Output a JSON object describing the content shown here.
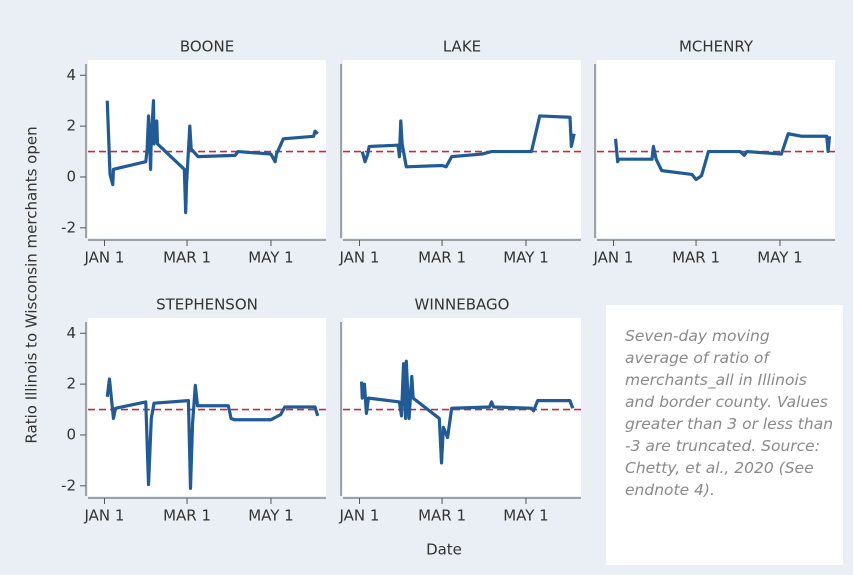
{
  "y_label": "Ratio Illinois to Wisconsin merchants open",
  "x_label": "Date",
  "note": "Seven-day moving average of ratio of merchants_all in Illinois and border county. Values greater than 3 or less than -3 are truncated. Source: Chetty, et al., 2020 (See endnote 4).",
  "chart_data": [
    {
      "type": "line",
      "title": "BOONE",
      "color": "#205b98",
      "ref_line": 1,
      "ref_color": "#c8283c",
      "xlim": [
        -12,
        161
      ],
      "ylim": [
        -2.4,
        4.6
      ],
      "xticks": [
        {
          "value": 0,
          "label": "JAN 1"
        },
        {
          "value": 60,
          "label": "MAR 1"
        },
        {
          "value": 121,
          "label": "MAY 1"
        }
      ],
      "yticks": [
        4,
        2,
        0,
        -2
      ],
      "x": [
        2,
        4,
        6,
        6.5,
        30,
        31,
        32,
        33.5,
        34,
        35.6,
        36,
        38,
        38.5,
        58,
        59,
        59.6,
        62,
        63,
        68,
        95,
        97,
        121,
        124,
        125,
        130,
        152,
        153,
        155
      ],
      "values": [
        3.0,
        0.1,
        -0.3,
        0.3,
        0.6,
        1.1,
        2.4,
        0.3,
        1.5,
        3.0,
        1.3,
        2.2,
        1.3,
        0.3,
        -1.4,
        -0.3,
        2.0,
        1.1,
        0.8,
        0.85,
        1.0,
        0.9,
        0.6,
        0.9,
        1.5,
        1.6,
        1.8,
        1.7
      ]
    },
    {
      "type": "line",
      "title": "LAKE",
      "color": "#205b98",
      "ref_line": 1,
      "ref_color": "#c8283c",
      "xlim": [
        -12,
        161
      ],
      "ylim": [
        -2.4,
        4.6
      ],
      "xticks": [
        {
          "value": 0,
          "label": "JAN 1"
        },
        {
          "value": 60,
          "label": "MAR 1"
        },
        {
          "value": 121,
          "label": "MAY 1"
        }
      ],
      "x": [
        2,
        4,
        6,
        7,
        28,
        29,
        30,
        31,
        34,
        60,
        63,
        67,
        89,
        96,
        125,
        131,
        153,
        154,
        156
      ],
      "values": [
        1.0,
        0.6,
        0.9,
        1.2,
        1.25,
        0.8,
        2.2,
        1.3,
        0.4,
        0.45,
        0.4,
        0.8,
        0.9,
        1.0,
        1.0,
        2.4,
        2.35,
        1.2,
        1.7
      ]
    },
    {
      "type": "line",
      "title": "MCHENRY",
      "color": "#205b98",
      "ref_line": 1,
      "ref_color": "#c8283c",
      "xlim": [
        -12,
        161
      ],
      "ylim": [
        -2.4,
        4.6
      ],
      "xticks": [
        {
          "value": 0,
          "label": "JAN 1"
        },
        {
          "value": 60,
          "label": "MAR 1"
        },
        {
          "value": 121,
          "label": "MAY 1"
        }
      ],
      "x": [
        1.5,
        3,
        4,
        28,
        29,
        31,
        35,
        57,
        60,
        64,
        69,
        92,
        95,
        97,
        122,
        127,
        137,
        155,
        156,
        157
      ],
      "values": [
        1.5,
        0.6,
        0.7,
        0.7,
        1.2,
        0.7,
        0.25,
        0.1,
        -0.1,
        0.05,
        1.0,
        1.0,
        0.85,
        1.0,
        0.9,
        1.7,
        1.6,
        1.6,
        1.0,
        1.6
      ]
    },
    {
      "type": "line",
      "title": "STEPHENSON",
      "color": "#205b98",
      "ref_line": 1,
      "ref_color": "#c8283c",
      "xlim": [
        -12,
        161
      ],
      "ylim": [
        -2.4,
        4.6
      ],
      "xticks": [
        {
          "value": 0,
          "label": "JAN 1"
        },
        {
          "value": 60,
          "label": "MAR 1"
        },
        {
          "value": 121,
          "label": "MAY 1"
        }
      ],
      "yticks": [
        4,
        2,
        0,
        -2
      ],
      "x": [
        2,
        3.6,
        5,
        6.5,
        8,
        30,
        32,
        34,
        36,
        61,
        62.5,
        64,
        66,
        67.6,
        90,
        92,
        94.5,
        121,
        128,
        131,
        153,
        155
      ],
      "values": [
        1.5,
        2.2,
        1.45,
        0.65,
        1.05,
        1.3,
        -1.95,
        0.65,
        1.25,
        1.35,
        -2.1,
        0.45,
        1.95,
        1.15,
        1.15,
        0.65,
        0.6,
        0.6,
        0.8,
        1.1,
        1.1,
        0.75
      ]
    },
    {
      "type": "line",
      "title": "WINNEBAGO",
      "color": "#205b98",
      "ref_line": 1,
      "ref_color": "#c8283c",
      "xlim": [
        -12,
        161
      ],
      "ylim": [
        -2.4,
        4.6
      ],
      "xticks": [
        {
          "value": 0,
          "label": "JAN 1"
        },
        {
          "value": 60,
          "label": "MAR 1"
        },
        {
          "value": 121,
          "label": "MAY 1"
        }
      ],
      "x": [
        1.5,
        2,
        3.6,
        5,
        6.5,
        29,
        30.5,
        32,
        33.5,
        34,
        36,
        38,
        39,
        58,
        59.6,
        61,
        64,
        67,
        94.5,
        96,
        97.5,
        125,
        126.5,
        129.5,
        153,
        155
      ],
      "values": [
        2.1,
        1.45,
        2.0,
        0.85,
        1.45,
        1.3,
        0.75,
        2.8,
        0.65,
        2.9,
        0.65,
        2.3,
        1.45,
        0.65,
        -1.1,
        0.3,
        -0.1,
        1.05,
        1.1,
        1.3,
        1.1,
        1.05,
        0.95,
        1.35,
        1.35,
        1.05
      ]
    }
  ]
}
